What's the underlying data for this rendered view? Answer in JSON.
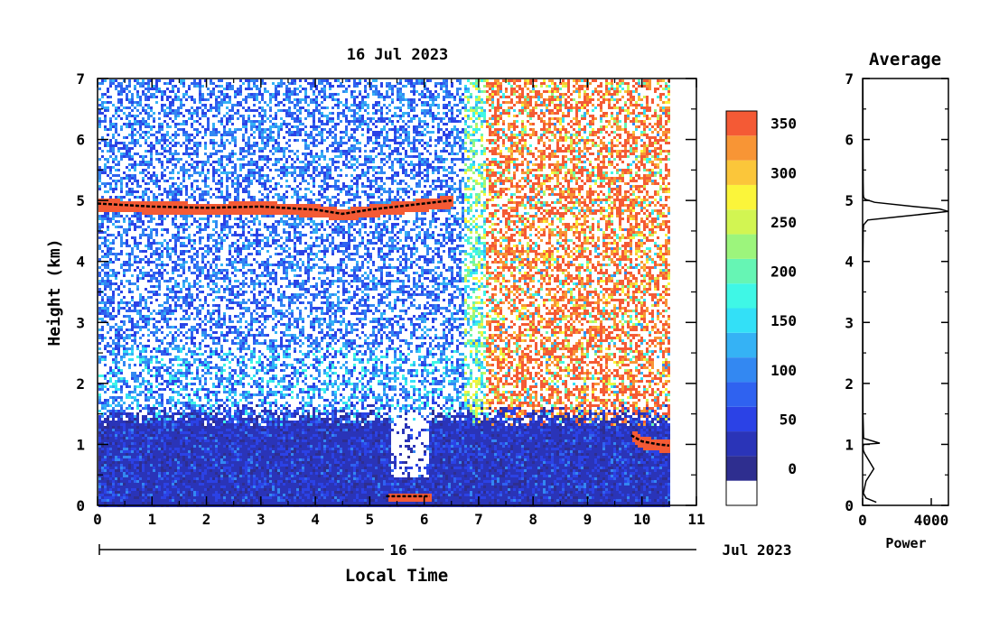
{
  "chart_data": [
    {
      "type": "heatmap",
      "title": "16 Jul 2023",
      "xlabel": "Local Time",
      "ylabel": "Height (km)",
      "xlim": [
        0,
        11
      ],
      "ylim": [
        0,
        7
      ],
      "x_ticks": [
        "0",
        "1",
        "2",
        "3",
        "4",
        "5",
        "6",
        "7",
        "8",
        "9",
        "10",
        "11"
      ],
      "y_ticks": [
        "0",
        "1",
        "2",
        "3",
        "4",
        "5",
        "6",
        "7"
      ],
      "date_axis": {
        "day_label": "16",
        "month_label": "Jul 2023"
      },
      "data_extent_hours": [
        0,
        10.5
      ],
      "colorbar": {
        "ticks": [
          "0",
          "50",
          "100",
          "150",
          "200",
          "250",
          "300",
          "350"
        ],
        "range": [
          -25,
          375
        ],
        "levels": [
          {
            "from": -25,
            "to": 0,
            "color": "#ffffff"
          },
          {
            "from": 0,
            "to": 25,
            "color": "#2e2e8f"
          },
          {
            "from": 25,
            "to": 50,
            "color": "#2a34b8"
          },
          {
            "from": 50,
            "to": 75,
            "color": "#2b42e6"
          },
          {
            "from": 75,
            "to": 100,
            "color": "#2f62f0"
          },
          {
            "from": 100,
            "to": 125,
            "color": "#3388f2"
          },
          {
            "from": 125,
            "to": 150,
            "color": "#35b2f5"
          },
          {
            "from": 150,
            "to": 175,
            "color": "#33e0f7"
          },
          {
            "from": 175,
            "to": 200,
            "color": "#3ff7e6"
          },
          {
            "from": 200,
            "to": 225,
            "color": "#66f5b4"
          },
          {
            "from": 225,
            "to": 250,
            "color": "#9cf57c"
          },
          {
            "from": 250,
            "to": 275,
            "color": "#d2f552"
          },
          {
            "from": 275,
            "to": 300,
            "color": "#fbf53a"
          },
          {
            "from": 300,
            "to": 325,
            "color": "#fbc63a"
          },
          {
            "from": 325,
            "to": 350,
            "color": "#f89535"
          },
          {
            "from": 350,
            "to": 375,
            "color": "#f45a35"
          },
          {
            "from": 375,
            "to": 400,
            "color": "#ef3535"
          }
        ]
      },
      "features": [
        {
          "name": "elevated layer",
          "x": [
            0,
            6.5
          ],
          "height_profile": [
            [
              0,
              4.95
            ],
            [
              1,
              4.9
            ],
            [
              2,
              4.88
            ],
            [
              3,
              4.9
            ],
            [
              4,
              4.85
            ],
            [
              4.5,
              4.78
            ],
            [
              5,
              4.85
            ],
            [
              6,
              4.95
            ],
            [
              6.5,
              5.0
            ]
          ]
        },
        {
          "name": "boundary layer",
          "x": [
            0,
            10.5
          ],
          "top_km": 1.3
        },
        {
          "name": "surface return",
          "x": [
            5.3,
            6.1
          ],
          "height_km": 0.15
        },
        {
          "name": "late layer",
          "x": [
            9.8,
            10.5
          ],
          "height_profile": [
            [
              9.8,
              1.15
            ],
            [
              10,
              1.05
            ],
            [
              10.3,
              1.0
            ],
            [
              10.5,
              0.98
            ]
          ]
        }
      ]
    },
    {
      "type": "line",
      "title": "Average",
      "xlabel": "Power",
      "xlim": [
        0,
        5000
      ],
      "ylim": [
        0,
        7
      ],
      "x_ticks": [
        "0",
        "4000"
      ],
      "y_ticks": [
        "0",
        "1",
        "2",
        "3",
        "4",
        "5",
        "6",
        "7"
      ],
      "series": [
        {
          "x": [
            800,
            200,
            40,
            200,
            650,
            120,
            40,
            30,
            60,
            1000,
            60,
            20,
            15,
            15,
            15,
            30,
            60,
            300,
            2000,
            5000,
            4500,
            3000,
            700,
            150,
            60,
            40,
            30,
            20,
            20,
            15
          ],
          "y": [
            0.05,
            0.12,
            0.2,
            0.4,
            0.6,
            0.85,
            0.9,
            0.96,
            1.0,
            1.02,
            1.1,
            1.5,
            2.0,
            3.0,
            4.0,
            4.5,
            4.6,
            4.68,
            4.73,
            4.82,
            4.86,
            4.9,
            4.97,
            5.02,
            5.05,
            5.1,
            5.3,
            6.0,
            6.5,
            7.0
          ]
        }
      ]
    }
  ]
}
